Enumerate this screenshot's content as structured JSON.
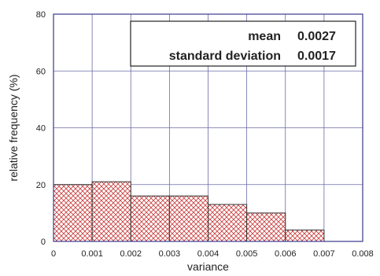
{
  "chart_data": {
    "type": "bar",
    "xlabel": "variance",
    "ylabel": "relative frequency (%)",
    "xlim": [
      0,
      0.008
    ],
    "ylim": [
      0,
      80
    ],
    "x_ticks": [
      "0",
      "0.001",
      "0.002",
      "0.003",
      "0.004",
      "0.005",
      "0.006",
      "0.007",
      "0.008"
    ],
    "y_ticks": [
      "0",
      "20",
      "40",
      "60",
      "80"
    ],
    "bins": [
      {
        "from": 0.0,
        "to": 0.001,
        "value": 20
      },
      {
        "from": 0.001,
        "to": 0.002,
        "value": 21
      },
      {
        "from": 0.002,
        "to": 0.003,
        "value": 16
      },
      {
        "from": 0.003,
        "to": 0.004,
        "value": 16
      },
      {
        "from": 0.004,
        "to": 0.005,
        "value": 13
      },
      {
        "from": 0.005,
        "to": 0.006,
        "value": 10
      },
      {
        "from": 0.006,
        "to": 0.007,
        "value": 4
      }
    ],
    "grid": true,
    "stats_box": {
      "mean_label": "mean",
      "mean_value": "0.0027",
      "sd_label": "standard deviation",
      "sd_value": "0.0017"
    },
    "colors": {
      "frame": "#3a3a8c",
      "grid": "#6a6aa8",
      "bar_hatch": "#c83a3a",
      "bar_edge": "#333333"
    }
  }
}
